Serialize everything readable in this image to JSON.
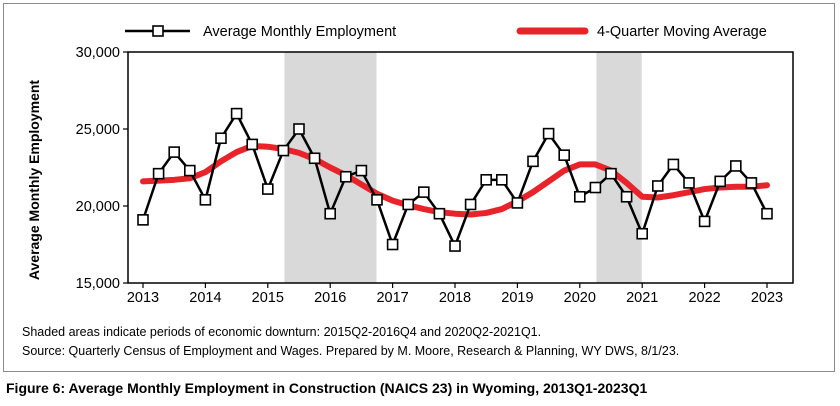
{
  "chart_data": {
    "type": "line",
    "title": "",
    "xlabel": "",
    "ylabel": "Average Monthly Employment",
    "ylim": [
      15000,
      30000
    ],
    "yticks": [
      "15,000",
      "20,000",
      "25,000",
      "30,000"
    ],
    "xticks": [
      "2013",
      "2014",
      "2015",
      "2016",
      "2017",
      "2018",
      "2019",
      "2020",
      "2021",
      "2022",
      "2023"
    ],
    "grid": false,
    "legend": "top",
    "shaded_periods": [
      {
        "start": "2015Q2",
        "end": "2016Q4"
      },
      {
        "start": "2020Q2",
        "end": "2021Q1"
      }
    ],
    "x": [
      "2013Q1",
      "2013Q2",
      "2013Q3",
      "2013Q4",
      "2014Q1",
      "2014Q2",
      "2014Q3",
      "2014Q4",
      "2015Q1",
      "2015Q2",
      "2015Q3",
      "2015Q4",
      "2016Q1",
      "2016Q2",
      "2016Q3",
      "2016Q4",
      "2017Q1",
      "2017Q2",
      "2017Q3",
      "2017Q4",
      "2018Q1",
      "2018Q2",
      "2018Q3",
      "2018Q4",
      "2019Q1",
      "2019Q2",
      "2019Q3",
      "2019Q4",
      "2020Q1",
      "2020Q2",
      "2020Q3",
      "2020Q4",
      "2021Q1",
      "2021Q2",
      "2021Q3",
      "2021Q4",
      "2022Q1",
      "2022Q2",
      "2022Q3",
      "2022Q4",
      "2023Q1"
    ],
    "series": [
      {
        "name": "Average Monthly Employment",
        "color": "#000000",
        "marker": "square",
        "values": [
          19100,
          22100,
          23500,
          22300,
          20400,
          24400,
          26000,
          24000,
          21100,
          23600,
          25000,
          23100,
          19500,
          21900,
          22300,
          20400,
          17500,
          20100,
          20900,
          19500,
          17400,
          20100,
          21700,
          21700,
          20200,
          22900,
          24700,
          23300,
          20600,
          21200,
          22100,
          20600,
          18200,
          21300,
          22700,
          21500,
          19000,
          21600,
          22600,
          21500,
          19500
        ]
      },
      {
        "name": "4-Quarter Moving Average",
        "color": "#e8232a",
        "values": [
          21600,
          21650,
          21700,
          21800,
          22200,
          22900,
          23500,
          23900,
          23850,
          23700,
          23450,
          23050,
          22500,
          22000,
          21400,
          20800,
          20350,
          20050,
          19800,
          19600,
          19500,
          19450,
          19550,
          19800,
          20300,
          20900,
          21600,
          22300,
          22700,
          22700,
          22300,
          21500,
          20600,
          20550,
          20700,
          20900,
          21100,
          21200,
          21250,
          21250,
          21350
        ]
      }
    ]
  },
  "notes": {
    "line1": "Shaded areas indicate periods of economic downturn: 2015Q2-2016Q4 and 2020Q2-2021Q1.",
    "line2": "Source: Quarterly Census of Employment and Wages. Prepared by M. Moore, Research & Planning, WY DWS, 8/1/23."
  },
  "caption": "Figure 6: Average Monthly Employment in Construction (NAICS 23) in Wyoming, 2013Q1-2023Q1"
}
